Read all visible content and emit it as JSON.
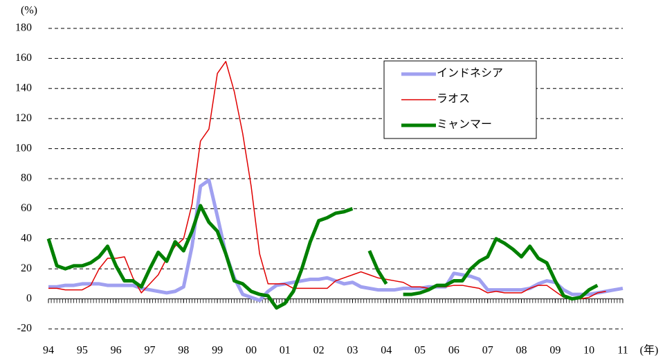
{
  "chart_data": {
    "type": "line",
    "y_unit": "(%)",
    "x_unit": "(年)",
    "x": [
      1994,
      1994.25,
      1994.5,
      1994.75,
      1995,
      1995.25,
      1995.5,
      1995.75,
      1996,
      1996.25,
      1996.5,
      1996.75,
      1997,
      1997.25,
      1997.5,
      1997.75,
      1998,
      1998.25,
      1998.5,
      1998.75,
      1999,
      1999.25,
      1999.5,
      1999.75,
      2000,
      2000.25,
      2000.5,
      2000.75,
      2001,
      2001.25,
      2001.5,
      2001.75,
      2002,
      2002.25,
      2002.5,
      2002.75,
      2003,
      2003.25,
      2003.5,
      2003.75,
      2004,
      2004.25,
      2004.5,
      2004.75,
      2005,
      2005.25,
      2005.5,
      2005.75,
      2006,
      2006.25,
      2006.5,
      2006.75,
      2007,
      2007.25,
      2007.5,
      2007.75,
      2008,
      2008.25,
      2008.5,
      2008.75,
      2009,
      2009.25,
      2009.5,
      2009.75,
      2010,
      2010.25,
      2010.5,
      2010.75,
      2011
    ],
    "series": [
      {
        "name": "インドネシア",
        "color": "#a0a0f0",
        "width": 5,
        "values": [
          8,
          8,
          9,
          9,
          10,
          10,
          10,
          9,
          9,
          9,
          9,
          7,
          6,
          5,
          4,
          5,
          8,
          35,
          75,
          79,
          55,
          30,
          14,
          3,
          1,
          -1,
          5,
          9,
          10,
          11,
          12,
          13,
          13,
          14,
          12,
          10,
          11,
          8,
          7,
          6,
          6,
          6,
          7,
          7,
          7,
          8,
          8,
          8,
          17,
          16,
          15,
          13,
          6,
          6,
          6,
          6,
          6,
          7,
          10,
          12,
          11,
          6,
          3,
          3,
          3,
          4,
          5,
          6,
          7
        ]
      },
      {
        "name": "ラオス",
        "color": "#e00000",
        "width": 1.5,
        "values": [
          7,
          7,
          6,
          6,
          6,
          9,
          20,
          27,
          27,
          28,
          14,
          4,
          10,
          16,
          27,
          35,
          40,
          63,
          105,
          113,
          150,
          158,
          138,
          110,
          75,
          30,
          10,
          10,
          10,
          7,
          7,
          7,
          7,
          7,
          12,
          14,
          16,
          18,
          16,
          14,
          13,
          12,
          11,
          8,
          8,
          7,
          8,
          8,
          9,
          9,
          8,
          7,
          4,
          5,
          4,
          4,
          4,
          7,
          9,
          9,
          5,
          1,
          0,
          0,
          1,
          4,
          5,
          null,
          null
        ]
      },
      {
        "name": "ミャンマー",
        "color": "#008000",
        "width": 5,
        "values": [
          40,
          22,
          20,
          22,
          22,
          24,
          28,
          35,
          22,
          12,
          12,
          8,
          20,
          31,
          25,
          38,
          32,
          45,
          62,
          51,
          45,
          30,
          12,
          10,
          5,
          3,
          2,
          -6,
          -3,
          5,
          20,
          38,
          52,
          54,
          57,
          58,
          60,
          null,
          32,
          19,
          10,
          null,
          3,
          3,
          4,
          6,
          9,
          9,
          12,
          12,
          20,
          25,
          28,
          40,
          37,
          33,
          28,
          35,
          27,
          24,
          12,
          2,
          0,
          1,
          6,
          9,
          null,
          null,
          null
        ]
      }
    ],
    "xlim": [
      1994,
      2011
    ],
    "xticks": [
      {
        "value": 1994,
        "label": "94"
      },
      {
        "value": 1995,
        "label": "95"
      },
      {
        "value": 1996,
        "label": "96"
      },
      {
        "value": 1997,
        "label": "97"
      },
      {
        "value": 1998,
        "label": "98"
      },
      {
        "value": 1999,
        "label": "99"
      },
      {
        "value": 2000,
        "label": "00"
      },
      {
        "value": 2001,
        "label": "01"
      },
      {
        "value": 2002,
        "label": "02"
      },
      {
        "value": 2003,
        "label": "03"
      },
      {
        "value": 2004,
        "label": "04"
      },
      {
        "value": 2005,
        "label": "05"
      },
      {
        "value": 2006,
        "label": "06"
      },
      {
        "value": 2007,
        "label": "07"
      },
      {
        "value": 2008,
        "label": "08"
      },
      {
        "value": 2009,
        "label": "09"
      },
      {
        "value": 2010,
        "label": "10"
      },
      {
        "value": 2011,
        "label": "11"
      }
    ],
    "ylim": [
      -20,
      180
    ],
    "yticks": [
      -20,
      0,
      20,
      40,
      60,
      80,
      100,
      120,
      140,
      160,
      180
    ],
    "grid": true,
    "legend": "upper right"
  }
}
